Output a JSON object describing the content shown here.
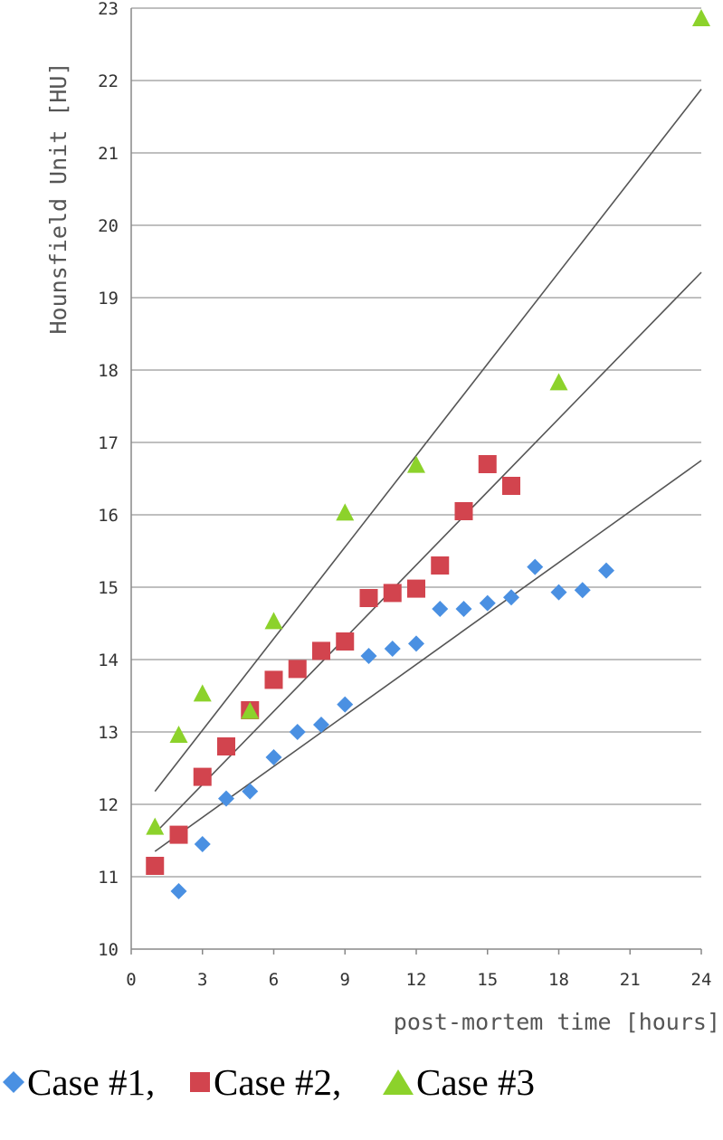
{
  "chart_data": {
    "type": "scatter",
    "xlabel": "post-mortem time [hours]",
    "ylabel": "Hounsfield Unit [HU]",
    "xlim": [
      0,
      24
    ],
    "ylim": [
      10,
      23
    ],
    "xticks": [
      0,
      3,
      6,
      9,
      12,
      15,
      18,
      21,
      24
    ],
    "yticks": [
      10,
      11,
      12,
      13,
      14,
      15,
      16,
      17,
      18,
      19,
      20,
      21,
      22,
      23
    ],
    "grid": "horizontal",
    "legend_position": "bottom",
    "series": [
      {
        "name": "Case #1,",
        "marker": "diamond",
        "color": "#4a90e2",
        "x": [
          2,
          3,
          4,
          5,
          6,
          7,
          8,
          9,
          10,
          11,
          12,
          13,
          14,
          15,
          16,
          17,
          18,
          19,
          20
        ],
        "y": [
          10.8,
          11.45,
          12.08,
          12.18,
          12.65,
          13.0,
          13.1,
          13.38,
          14.05,
          14.15,
          14.22,
          14.7,
          14.7,
          14.78,
          14.86,
          15.28,
          14.93,
          14.96,
          15.23
        ],
        "trend": {
          "x": [
            1,
            24
          ],
          "y": [
            11.35,
            16.75
          ]
        }
      },
      {
        "name": "Case #2,",
        "marker": "square",
        "color": "#d2444e",
        "x": [
          1,
          2,
          3,
          4,
          5,
          6,
          7,
          8,
          9,
          10,
          11,
          12,
          13,
          14,
          15,
          16
        ],
        "y": [
          11.15,
          11.58,
          12.38,
          12.8,
          13.3,
          13.72,
          13.87,
          14.12,
          14.25,
          14.85,
          14.92,
          14.98,
          15.3,
          16.05,
          16.7,
          16.4
        ],
        "trend": {
          "x": [
            1,
            24
          ],
          "y": [
            11.6,
            19.35
          ]
        }
      },
      {
        "name": "Case #3",
        "marker": "triangle",
        "color": "#8cd22b",
        "x": [
          1,
          2,
          3,
          5,
          6,
          9,
          12,
          18,
          24
        ],
        "y": [
          11.68,
          12.95,
          13.52,
          13.28,
          14.52,
          16.02,
          16.68,
          17.82,
          22.85
        ],
        "trend": {
          "x": [
            1,
            24
          ],
          "y": [
            12.18,
            21.88
          ]
        }
      }
    ]
  }
}
